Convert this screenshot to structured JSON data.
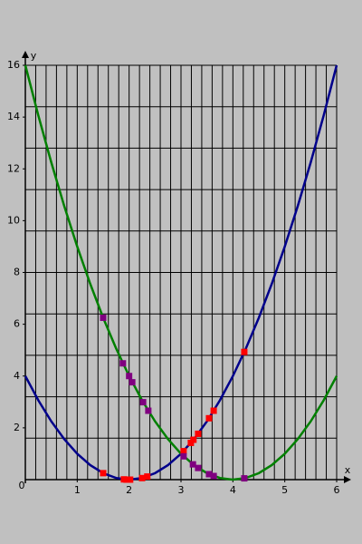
{
  "chart_data": {
    "type": "line",
    "x_label": "x",
    "y_label": "y",
    "origin_label": "0",
    "xlim": [
      0,
      6
    ],
    "ylim": [
      0,
      16
    ],
    "xticks": [
      1,
      2,
      3,
      4,
      5,
      6
    ],
    "yticks": [
      2,
      4,
      6,
      8,
      10,
      12,
      14,
      16
    ],
    "xgrid": [
      0.2,
      0.4,
      0.6,
      0.8,
      1,
      1.2,
      1.4,
      1.6,
      1.8,
      2,
      2.2,
      2.4,
      2.6,
      2.8,
      3,
      3.2,
      3.4,
      3.6,
      3.8,
      4,
      4.2,
      4.4,
      4.6,
      4.8,
      5,
      5.2,
      5.4,
      5.6,
      5.8,
      6
    ],
    "ygrid": [
      1.6,
      3.2,
      4.8,
      6.4,
      8,
      9.6,
      11.2,
      12.8,
      14.4,
      16
    ],
    "grid": true,
    "series": [
      {
        "type": "line",
        "color": "#00008b",
        "x": [
          0,
          0.25,
          0.5,
          0.75,
          1,
          1.25,
          1.5,
          1.75,
          2,
          2.25,
          2.5,
          2.75,
          3,
          3.25,
          3.5,
          3.75,
          4,
          4.25,
          4.5,
          4.75,
          5,
          5.25,
          5.5,
          5.75,
          6
        ],
        "values": [
          4,
          3.0625,
          2.25,
          1.5625,
          1,
          0.5625,
          0.25,
          0.0625,
          0,
          0.0625,
          0.25,
          0.5625,
          1,
          1.5625,
          2.25,
          3.0625,
          4,
          5.0625,
          6.25,
          7.5625,
          9,
          10.5625,
          12.25,
          14.0625,
          16
        ]
      },
      {
        "type": "line",
        "color": "#008000",
        "x": [
          0,
          0.25,
          0.5,
          0.75,
          1,
          1.25,
          1.5,
          1.75,
          2,
          2.25,
          2.5,
          2.75,
          3,
          3.25,
          3.5,
          3.75,
          4,
          4.25,
          4.5,
          4.75,
          5,
          5.25,
          5.5,
          5.75,
          6
        ],
        "values": [
          16,
          14.0625,
          12.25,
          10.5625,
          9,
          7.5625,
          6.25,
          5.0625,
          4,
          3.0625,
          2.25,
          1.5625,
          1,
          0.5625,
          0.25,
          0.0625,
          0,
          0.0625,
          0.25,
          0.5625,
          1,
          1.5625,
          2.25,
          3.0625,
          4
        ]
      },
      {
        "type": "scatter",
        "color": "#ff0000",
        "x": [
          1.5,
          1.9,
          1.95,
          2.02,
          2.25,
          2.35,
          3.05,
          3.19,
          3.24,
          3.33,
          3.54,
          3.63,
          4.22
        ],
        "values": [
          0.25,
          0.01,
          0.0,
          0.0,
          0.06,
          0.12,
          1.1,
          1.42,
          1.54,
          1.77,
          2.37,
          2.66,
          4.93
        ]
      },
      {
        "type": "scatter",
        "color": "#800080",
        "x": [
          1.5,
          1.88,
          2.0,
          2.06,
          2.27,
          2.37,
          3.05,
          3.23,
          3.33,
          3.54,
          3.63,
          4.22
        ],
        "values": [
          6.25,
          4.49,
          4.0,
          3.76,
          2.99,
          2.66,
          0.9,
          0.59,
          0.45,
          0.21,
          0.14,
          0.05
        ]
      }
    ]
  }
}
